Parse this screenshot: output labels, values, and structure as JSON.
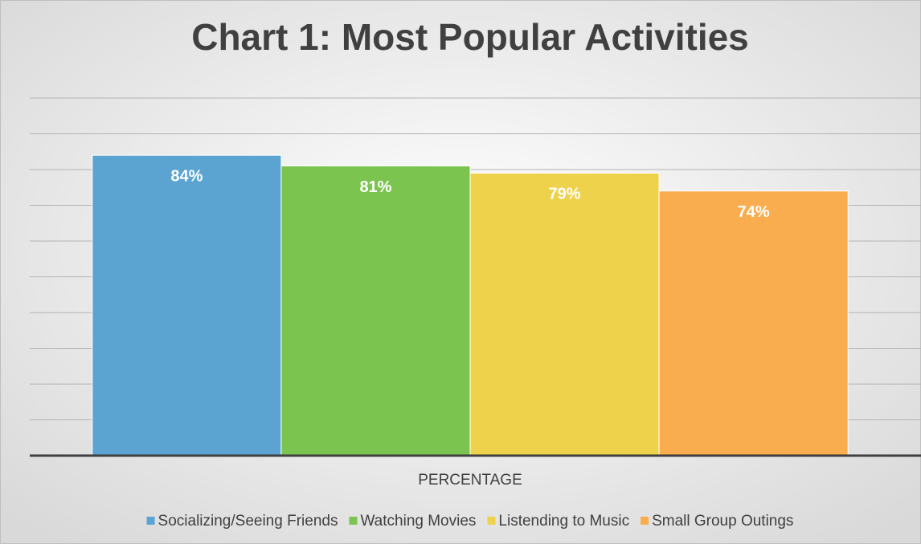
{
  "chart_data": {
    "type": "bar",
    "title": "Chart 1: Most Popular Activities",
    "categories": [
      "PERCENTAGE"
    ],
    "series": [
      {
        "name": "Socializing/Seeing Friends",
        "color": "#5ba4d2",
        "values": [
          84
        ],
        "value_labels": [
          "84%"
        ]
      },
      {
        "name": "Watching Movies",
        "color": "#7cc450",
        "values": [
          81
        ],
        "value_labels": [
          "81%"
        ]
      },
      {
        "name": "Listending to Music",
        "color": "#efd24c",
        "values": [
          79
        ],
        "value_labels": [
          "79%"
        ]
      },
      {
        "name": "Small Group Outings",
        "color": "#f9ad4f",
        "values": [
          74
        ],
        "value_labels": [
          "74%"
        ]
      }
    ],
    "ylim": [
      0,
      100
    ],
    "yticks": [
      0,
      10,
      20,
      30,
      40,
      50,
      60,
      70,
      80,
      90,
      100
    ],
    "grid": true,
    "legend": "bottom"
  }
}
